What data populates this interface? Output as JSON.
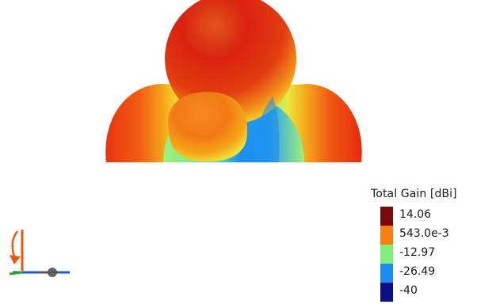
{
  "legend": {
    "title": "Total Gain [dBi]",
    "entries": [
      {
        "label": "14.06",
        "color": "#7a0a0a"
      },
      {
        "label": "543.0e-3",
        "color": "#f77f12"
      },
      {
        "label": "-12.97",
        "color": "#7ff07f"
      },
      {
        "label": "-26.49",
        "color": "#1a8df2"
      },
      {
        "label": "-40",
        "color": "#0b0f8a"
      }
    ]
  },
  "colors": {
    "background": "#ffffff",
    "gain_high": "#d8160f",
    "gain_mid": "#f0a020",
    "gain_mid_low": "#7ff07f",
    "gain_low": "#1a8df2"
  },
  "icons": {
    "axis_triad": "xyz-axis-triad-icon"
  }
}
